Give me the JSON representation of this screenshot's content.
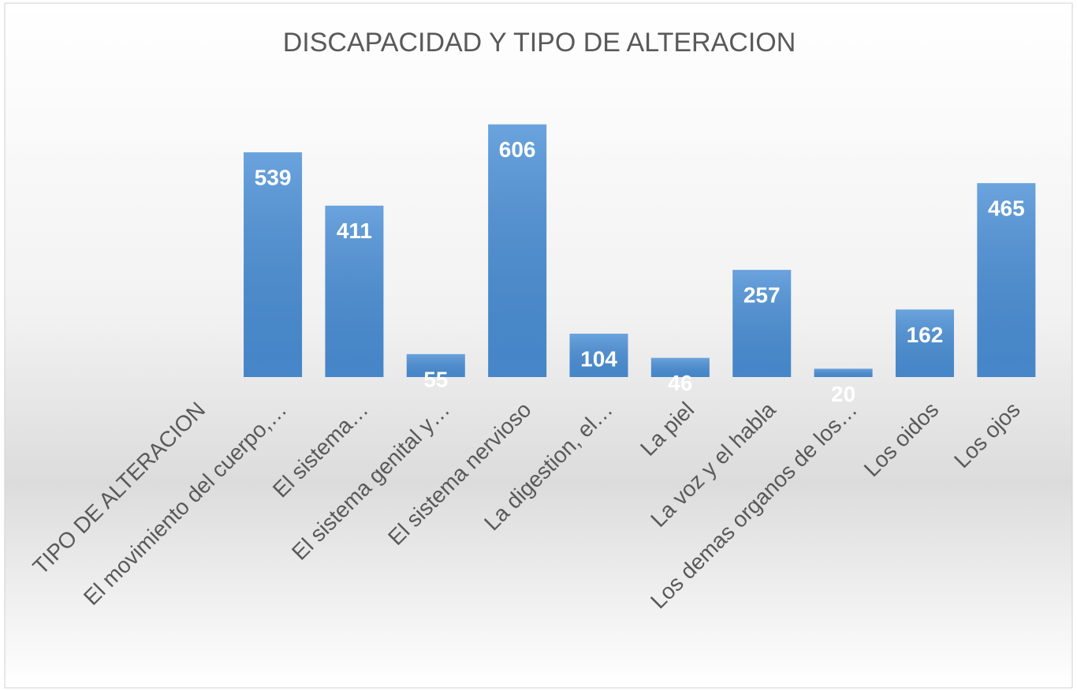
{
  "chart_data": {
    "type": "bar",
    "title": "DISCAPACIDAD Y TIPO DE ALTERACION",
    "categories": [
      "TIPO DE ALTERACION",
      "El movimiento del cuerpo,…",
      "El sistema…",
      "El sistema genital y…",
      "El sistema nervioso",
      "La digestion, el…",
      "La piel",
      "La voz y el habla",
      "Los demas organos de los…",
      "Los oidos",
      "Los ojos"
    ],
    "values": [
      null,
      539,
      411,
      55,
      606,
      104,
      46,
      257,
      20,
      162,
      465
    ],
    "color": "#4a8fd6",
    "ylim": [
      0,
      700
    ]
  }
}
